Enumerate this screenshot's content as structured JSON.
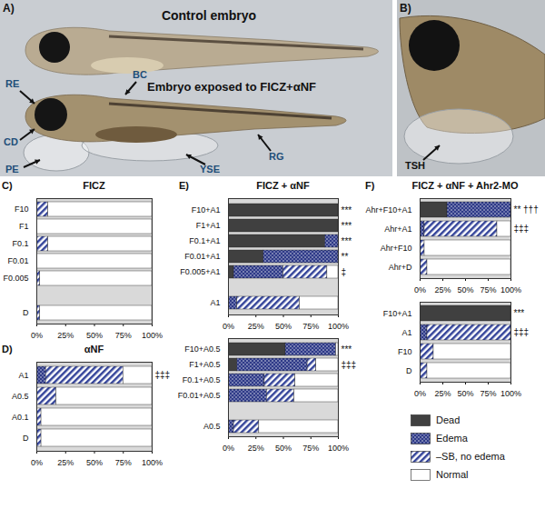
{
  "images": [
    {
      "label": "A)",
      "captions": [
        "Control embryo",
        "Embryo exposed to FICZ+αNF"
      ],
      "annotations": [
        "RE",
        "CD",
        "PE",
        "YSE",
        "BC",
        "RG"
      ]
    },
    {
      "label": "B)",
      "annotations": [
        "TSH"
      ]
    }
  ],
  "chart_data": [
    {
      "type": "bar",
      "panel": "C)",
      "title": "FICZ",
      "orientation": "horizontal",
      "stacked": true,
      "categories": [
        "F10",
        "F1",
        "F0.1",
        "F0.01",
        "F0.005",
        null,
        "D"
      ],
      "series": [
        {
          "name": "Dead",
          "color": "#404040",
          "values": [
            0,
            0,
            0,
            0,
            0,
            null,
            0
          ]
        },
        {
          "name": "Edema",
          "color": "#2e3a87",
          "values": [
            0,
            0,
            0,
            0,
            0,
            null,
            0
          ]
        },
        {
          "name": "–SB, no edema",
          "color": "#34449a",
          "values": [
            10,
            0,
            10,
            0,
            3,
            null,
            3
          ]
        },
        {
          "name": "Normal",
          "color": "#ffffff",
          "values": [
            90,
            100,
            90,
            100,
            97,
            null,
            97
          ]
        }
      ],
      "annotations": [
        null,
        null,
        null,
        null,
        null,
        null,
        null
      ],
      "xlim": [
        0,
        100
      ],
      "xticks": [
        {
          "value": 0,
          "label": "0%"
        },
        {
          "value": 25,
          "label": "25%"
        },
        {
          "value": 50,
          "label": "50%"
        },
        {
          "value": 75,
          "label": "75%"
        },
        {
          "value": 100,
          "label": "100%"
        }
      ]
    },
    {
      "type": "bar",
      "panel": "D)",
      "title": "αNF",
      "orientation": "horizontal",
      "stacked": true,
      "categories": [
        "A1",
        "A0.5",
        "A0.1",
        "D"
      ],
      "series": [
        {
          "name": "Dead",
          "color": "#404040",
          "values": [
            0,
            0,
            0,
            0
          ]
        },
        {
          "name": "Edema",
          "color": "#2e3a87",
          "values": [
            8,
            0,
            0,
            0
          ]
        },
        {
          "name": "–SB, no edema",
          "color": "#34449a",
          "values": [
            67,
            17,
            4,
            4
          ]
        },
        {
          "name": "Normal",
          "color": "#ffffff",
          "values": [
            25,
            83,
            96,
            96
          ]
        }
      ],
      "annotations": [
        "‡‡‡",
        null,
        null,
        null
      ],
      "xlim": [
        0,
        100
      ],
      "xticks": [
        {
          "value": 0,
          "label": "0%"
        },
        {
          "value": 25,
          "label": "25%"
        },
        {
          "value": 50,
          "label": "50%"
        },
        {
          "value": 75,
          "label": "75%"
        },
        {
          "value": 100,
          "label": "100%"
        }
      ]
    },
    {
      "type": "bar",
      "panel": "E)",
      "title": "FICZ + αNF",
      "orientation": "horizontal",
      "stacked": true,
      "categories": [
        "F10+A1",
        "F1+A1",
        "F0.1+A1",
        "F0.01+A1",
        "F0.005+A1",
        null,
        "A1"
      ],
      "series": [
        {
          "name": "Dead",
          "color": "#404040",
          "values": [
            100,
            100,
            88,
            32,
            5,
            null,
            0
          ]
        },
        {
          "name": "Edema",
          "color": "#2e3a87",
          "values": [
            0,
            0,
            12,
            68,
            45,
            null,
            8
          ]
        },
        {
          "name": "–SB, no edema",
          "color": "#34449a",
          "values": [
            0,
            0,
            0,
            0,
            40,
            null,
            57
          ]
        },
        {
          "name": "Normal",
          "color": "#ffffff",
          "values": [
            0,
            0,
            0,
            0,
            10,
            null,
            35
          ]
        }
      ],
      "annotations": [
        "***",
        "***",
        "***",
        "**",
        "‡",
        null,
        null
      ],
      "xlim": [
        0,
        100
      ],
      "xticks": [
        {
          "value": 0,
          "label": "0%"
        },
        {
          "value": 25,
          "label": "25%"
        },
        {
          "value": 50,
          "label": "50%"
        },
        {
          "value": 75,
          "label": "75%"
        },
        {
          "value": 100,
          "label": "100%"
        }
      ]
    },
    {
      "type": "bar",
      "orientation": "horizontal",
      "stacked": true,
      "categories": [
        "F10+A0.5",
        "F1+A0.5",
        "F0.1+A0.5",
        "F0.01+A0.5",
        null,
        "A0.5"
      ],
      "series": [
        {
          "name": "Dead",
          "color": "#404040",
          "values": [
            52,
            8,
            0,
            0,
            null,
            0
          ]
        },
        {
          "name": "Edema",
          "color": "#2e3a87",
          "values": [
            46,
            64,
            33,
            35,
            null,
            5
          ]
        },
        {
          "name": "–SB, no edema",
          "color": "#34449a",
          "values": [
            0,
            8,
            28,
            25,
            null,
            23
          ]
        },
        {
          "name": "Normal",
          "color": "#ffffff",
          "values": [
            2,
            20,
            39,
            40,
            null,
            72
          ]
        }
      ],
      "annotations": [
        "***",
        "‡‡‡",
        null,
        null,
        null,
        null
      ],
      "xlim": [
        0,
        100
      ],
      "xticks": [
        {
          "value": 0,
          "label": "0%"
        },
        {
          "value": 25,
          "label": "25%"
        },
        {
          "value": 50,
          "label": "50%"
        },
        {
          "value": 75,
          "label": "75%"
        },
        {
          "value": 100,
          "label": "100%"
        }
      ]
    },
    {
      "type": "bar",
      "panel": "F)",
      "title": "FICZ + αNF + Ahr2-MO",
      "orientation": "horizontal",
      "stacked": true,
      "categories": [
        "Ahr+F10+A1",
        "Ahr+A1",
        "Ahr+F10",
        "Ahr+D"
      ],
      "series": [
        {
          "name": "Dead",
          "color": "#404040",
          "values": [
            30,
            0,
            0,
            0
          ]
        },
        {
          "name": "Edema",
          "color": "#2e3a87",
          "values": [
            70,
            5,
            0,
            0
          ]
        },
        {
          "name": "–SB, no edema",
          "color": "#34449a",
          "values": [
            0,
            80,
            5,
            8
          ]
        },
        {
          "name": "Normal",
          "color": "#ffffff",
          "values": [
            0,
            15,
            95,
            92
          ]
        }
      ],
      "annotations": [
        "** †††",
        "‡‡‡",
        null,
        null
      ],
      "xlim": [
        0,
        100
      ],
      "xticks": [
        {
          "value": 0,
          "label": "0%"
        },
        {
          "value": 25,
          "label": "25%"
        },
        {
          "value": 50,
          "label": "50%"
        },
        {
          "value": 75,
          "label": "75%"
        },
        {
          "value": 100,
          "label": "100%"
        }
      ]
    },
    {
      "type": "bar",
      "orientation": "horizontal",
      "stacked": true,
      "categories": [
        "F10+A1",
        "A1",
        "F10",
        "D"
      ],
      "series": [
        {
          "name": "Dead",
          "color": "#404040",
          "values": [
            100,
            0,
            0,
            0
          ]
        },
        {
          "name": "Edema",
          "color": "#2e3a87",
          "values": [
            0,
            8,
            0,
            0
          ]
        },
        {
          "name": "–SB, no edema",
          "color": "#34449a",
          "values": [
            0,
            92,
            15,
            8
          ]
        },
        {
          "name": "Normal",
          "color": "#ffffff",
          "values": [
            0,
            0,
            85,
            92
          ]
        }
      ],
      "annotations": [
        "***",
        "‡‡‡",
        null,
        null
      ],
      "xlim": [
        0,
        100
      ],
      "xticks": [
        {
          "value": 0,
          "label": "0%"
        },
        {
          "value": 25,
          "label": "25%"
        },
        {
          "value": 50,
          "label": "50%"
        },
        {
          "value": 75,
          "label": "75%"
        },
        {
          "value": 100,
          "label": "100%"
        }
      ]
    }
  ]
}
